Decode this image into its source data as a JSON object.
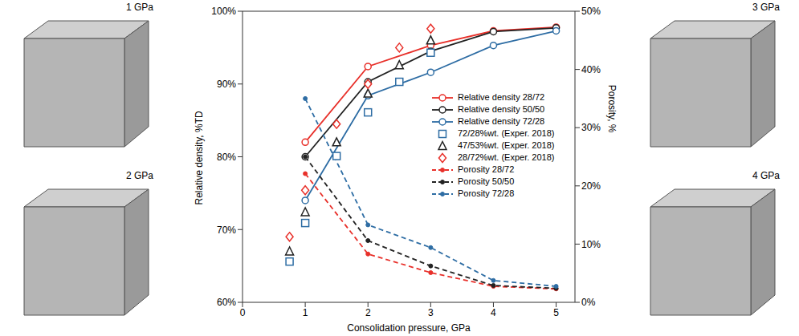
{
  "chart_data": {
    "type": "line",
    "xlabel": "Consolidation pressure, GPa",
    "ylabel": "Relative density, %TD",
    "y2label": "Porosity, %",
    "xlim": [
      0,
      5.3
    ],
    "xticks": [
      0,
      1,
      2,
      3,
      4,
      5
    ],
    "ylim": [
      60,
      100
    ],
    "yticks": [
      {
        "value": 60,
        "label": "60%"
      },
      {
        "value": 70,
        "label": "70%"
      },
      {
        "value": 80,
        "label": "80%"
      },
      {
        "value": 90,
        "label": "90%"
      },
      {
        "value": 100,
        "label": "100%"
      }
    ],
    "y2lim": [
      0,
      50
    ],
    "y2ticks": [
      {
        "value": 0,
        "label": "0%"
      },
      {
        "value": 10,
        "label": "10%"
      },
      {
        "value": 20,
        "label": "20%"
      },
      {
        "value": 30,
        "label": "30%"
      },
      {
        "value": 40,
        "label": "40%"
      },
      {
        "value": 50,
        "label": "50%"
      }
    ],
    "legend": "right",
    "annotations": [
      "1 GPa",
      "2 GPa",
      "3 GPa",
      "4 GPa"
    ],
    "series": [
      {
        "name": "Relative density 28/72",
        "type": "line",
        "color": "#e8302a",
        "marker": "circle",
        "line_style": "solid",
        "x": [
          1,
          2,
          3,
          4,
          5
        ],
        "values": [
          82,
          92.4,
          95.3,
          97.3,
          97.8
        ]
      },
      {
        "name": "Relative density 50/50",
        "type": "line",
        "color": "#222222",
        "marker": "circle",
        "line_style": "solid",
        "x": [
          1,
          2,
          3,
          4,
          5
        ],
        "values": [
          80,
          90.3,
          94.5,
          97.2,
          97.7
        ]
      },
      {
        "name": "Relative density 72/28",
        "type": "line",
        "color": "#2e6da4",
        "marker": "circle",
        "line_style": "solid",
        "x": [
          1,
          2,
          3,
          4,
          5
        ],
        "values": [
          74,
          88.4,
          91.6,
          95.3,
          97.3
        ]
      },
      {
        "name": "72/28%wt. (Exper. 2018)",
        "type": "scatter",
        "color": "#2e6da4",
        "marker": "square",
        "x": [
          0.75,
          1,
          1.5,
          2,
          2.5,
          3
        ],
        "values": [
          65.6,
          70.9,
          80.1,
          86.1,
          90.3,
          94.3
        ]
      },
      {
        "name": "47/53%wt. (Exper. 2018)",
        "type": "scatter",
        "color": "#222222",
        "marker": "triangle",
        "x": [
          0.75,
          1,
          1.5,
          2,
          2.5,
          3
        ],
        "values": [
          67,
          72.4,
          82,
          88.7,
          92.6,
          96
        ]
      },
      {
        "name": "28/72%wt. (Exper. 2018)",
        "type": "scatter",
        "color": "#e8302a",
        "marker": "diamond",
        "x": [
          0.75,
          1,
          1.5,
          2,
          2.5,
          3
        ],
        "values": [
          69,
          75.4,
          84.5,
          90,
          95,
          97.6
        ]
      },
      {
        "name": "Porosity 28/72",
        "type": "line",
        "axis": "y2",
        "color": "#e8302a",
        "marker": "dot",
        "line_style": "dashed",
        "x": [
          1,
          2,
          3,
          4,
          5
        ],
        "values": [
          22.1,
          8.3,
          5.1,
          2.75,
          2.3
        ]
      },
      {
        "name": "Porosity 50/50",
        "type": "line",
        "axis": "y2",
        "color": "#222222",
        "marker": "dot",
        "line_style": "dashed",
        "x": [
          1,
          2,
          3,
          4,
          5
        ],
        "values": [
          25,
          10.6,
          6.25,
          2.9,
          2.4
        ]
      },
      {
        "name": "Porosity 72/28",
        "type": "line",
        "axis": "y2",
        "color": "#2e6da4",
        "marker": "dot",
        "line_style": "dashed",
        "x": [
          1,
          2,
          3,
          4,
          5
        ],
        "values": [
          35,
          13.3,
          9.4,
          3.75,
          2.75
        ]
      }
    ]
  }
}
